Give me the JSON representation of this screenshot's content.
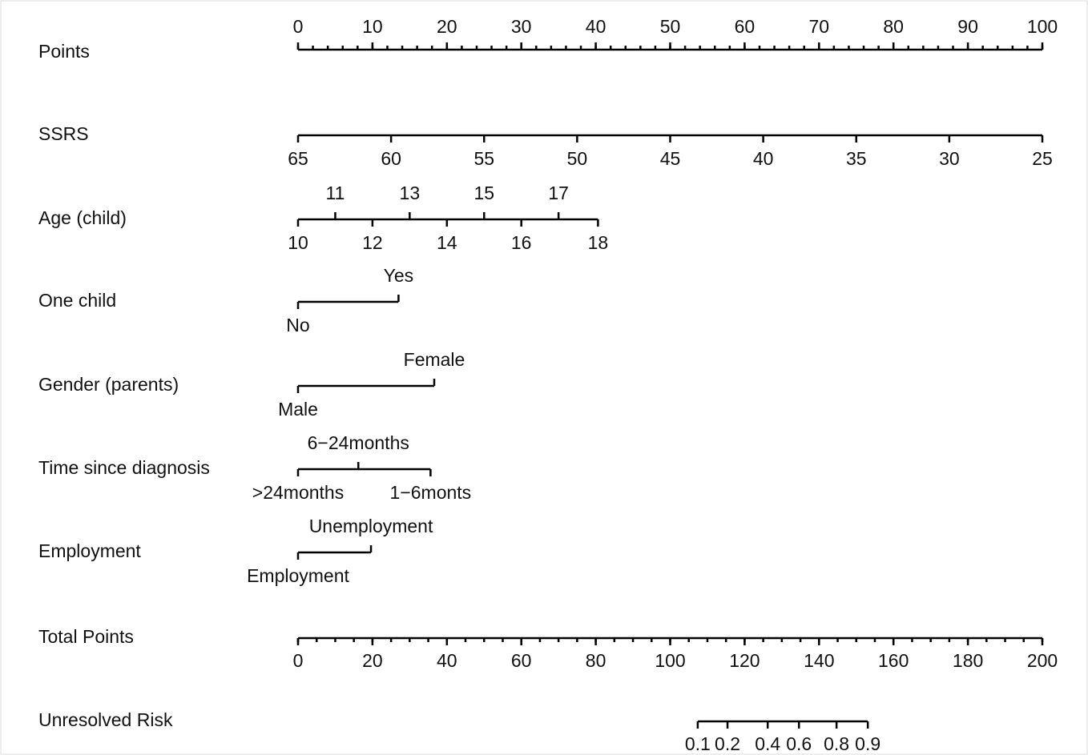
{
  "chart_data": {
    "type": "nomogram",
    "color": "#000000",
    "points": {
      "label": "Points",
      "lim": [
        0,
        100
      ],
      "ticks": [
        0,
        10,
        20,
        30,
        40,
        50,
        60,
        70,
        80,
        90,
        100
      ],
      "minor_step": 2
    },
    "variables": [
      {
        "label": "SSRS",
        "alternate_labels": false,
        "ticks": [
          {
            "value": 0,
            "label": "65"
          },
          {
            "value": 12.5,
            "label": "60"
          },
          {
            "value": 25,
            "label": "55"
          },
          {
            "value": 37.5,
            "label": "50"
          },
          {
            "value": 50,
            "label": "45"
          },
          {
            "value": 62.5,
            "label": "40"
          },
          {
            "value": 75,
            "label": "35"
          },
          {
            "value": 87.5,
            "label": "30"
          },
          {
            "value": 100,
            "label": "25"
          }
        ]
      },
      {
        "label": "Age (child)",
        "alternate_labels": true,
        "ticks": [
          {
            "value": 0,
            "label": "10"
          },
          {
            "value": 5,
            "label": "11"
          },
          {
            "value": 10,
            "label": "12"
          },
          {
            "value": 15,
            "label": "13"
          },
          {
            "value": 20,
            "label": "14"
          },
          {
            "value": 25,
            "label": "15"
          },
          {
            "value": 30,
            "label": "16"
          },
          {
            "value": 35,
            "label": "17"
          },
          {
            "value": 40.3,
            "label": "18"
          }
        ]
      },
      {
        "label": "One child",
        "alternate_labels": true,
        "ticks": [
          {
            "value": 0,
            "label": "No"
          },
          {
            "value": 13.5,
            "label": "Yes"
          }
        ]
      },
      {
        "label": "Gender (parents)",
        "alternate_labels": true,
        "ticks": [
          {
            "value": 0,
            "label": "Male"
          },
          {
            "value": 18.3,
            "label": "Female"
          }
        ]
      },
      {
        "label": "Time since diagnosis",
        "alternate_labels": true,
        "ticks": [
          {
            "value": 0,
            "label": ">24months"
          },
          {
            "value": 8.1,
            "label": "6−24months"
          },
          {
            "value": 17.8,
            "label": "1−6monts"
          }
        ]
      },
      {
        "label": "Employment",
        "alternate_labels": true,
        "ticks": [
          {
            "value": 0,
            "label": "Employment"
          },
          {
            "value": 9.8,
            "label": "Unemployment"
          }
        ]
      }
    ],
    "total": {
      "label": "Total Points",
      "lim": [
        0,
        200
      ],
      "ticks": [
        0,
        20,
        40,
        60,
        80,
        100,
        120,
        140,
        160,
        180,
        200
      ],
      "minor_step": 5
    },
    "risk": {
      "label": "Unresolved Risk",
      "ticks": [
        {
          "value": 107.4,
          "label": "0.1"
        },
        {
          "value": 115.4,
          "label": "0.2"
        },
        {
          "value": 126.2,
          "label": "0.4"
        },
        {
          "value": 134.6,
          "label": "0.6"
        },
        {
          "value": 144.7,
          "label": "0.8"
        },
        {
          "value": 153.1,
          "label": "0.9"
        }
      ]
    }
  }
}
